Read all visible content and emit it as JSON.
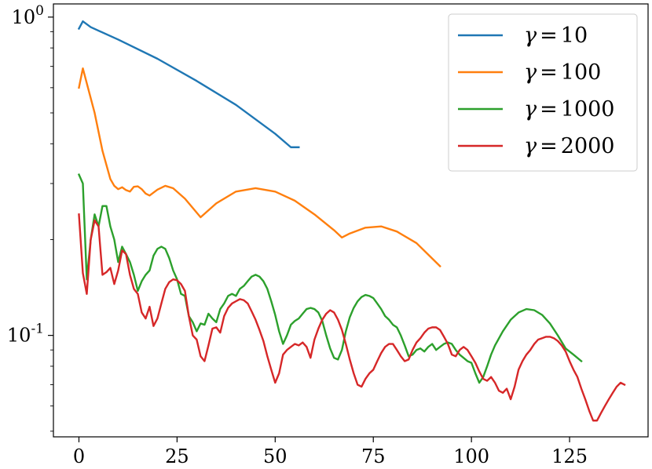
{
  "chart_data": {
    "type": "line",
    "title": "",
    "xlabel": "",
    "ylabel": "",
    "xlim": [
      -6.5,
      145
    ],
    "ylim": [
      0.048,
      1.1
    ],
    "yscale": "log",
    "grid": false,
    "legend_position": "top-right",
    "x_ticks": [
      0,
      25,
      50,
      75,
      100,
      125
    ],
    "x_tick_labels": [
      "0",
      "25",
      "50",
      "75",
      "100",
      "125"
    ],
    "y_ticks": [
      0.1,
      1
    ],
    "y_tick_labels": [
      {
        "base": "10",
        "exp": "-1"
      },
      {
        "base": "10",
        "exp": "0"
      }
    ],
    "series": [
      {
        "name": "10",
        "color": "#1f77b4",
        "x": [
          0,
          1,
          3,
          10,
          20,
          30,
          40,
          50,
          54,
          56
        ],
        "y": [
          0.92,
          0.97,
          0.93,
          0.85,
          0.74,
          0.63,
          0.53,
          0.43,
          0.39,
          0.39
        ]
      },
      {
        "name": "100",
        "color": "#ff7f0e",
        "x": [
          0,
          1,
          4,
          6,
          8,
          9,
          10,
          11,
          12,
          13,
          14,
          15,
          16,
          17,
          18,
          20,
          22,
          24,
          27,
          31,
          35,
          40,
          45,
          50,
          55,
          60,
          65,
          67,
          69,
          73,
          77,
          81,
          86,
          92
        ],
        "y": [
          0.6,
          0.69,
          0.5,
          0.38,
          0.31,
          0.295,
          0.288,
          0.292,
          0.286,
          0.283,
          0.293,
          0.294,
          0.288,
          0.279,
          0.275,
          0.287,
          0.295,
          0.29,
          0.269,
          0.235,
          0.26,
          0.283,
          0.29,
          0.283,
          0.265,
          0.24,
          0.214,
          0.203,
          0.209,
          0.218,
          0.22,
          0.212,
          0.195,
          0.165
        ]
      },
      {
        "name": "1000",
        "color": "#2ca02c",
        "x": [
          0,
          1,
          2,
          3,
          4,
          5,
          6,
          7,
          8,
          9,
          10,
          11,
          12,
          13,
          14,
          15,
          16,
          17,
          18,
          19,
          20,
          21,
          22,
          23,
          24,
          25,
          26,
          27,
          28,
          29,
          30,
          31,
          32,
          33,
          34,
          35,
          36,
          37,
          38,
          39,
          40,
          41,
          42,
          43,
          44,
          45,
          46,
          47,
          48,
          49,
          50,
          51,
          52,
          53,
          54,
          55,
          56,
          57,
          58,
          59,
          60,
          61,
          62,
          63,
          64,
          65,
          66,
          67,
          68,
          69,
          70,
          71,
          72,
          73,
          74,
          75,
          76,
          77,
          78,
          79,
          80,
          81,
          82,
          83,
          84,
          85,
          86,
          87,
          88,
          89,
          90,
          91,
          92,
          93,
          94,
          95,
          96,
          97,
          98,
          99,
          100,
          101,
          102,
          103,
          104,
          105,
          106,
          108,
          110,
          112,
          114,
          116,
          118,
          120,
          122,
          124,
          126,
          128
        ],
        "y": [
          0.32,
          0.3,
          0.15,
          0.2,
          0.24,
          0.22,
          0.255,
          0.255,
          0.22,
          0.2,
          0.17,
          0.19,
          0.18,
          0.17,
          0.155,
          0.138,
          0.148,
          0.155,
          0.16,
          0.178,
          0.187,
          0.19,
          0.187,
          0.175,
          0.16,
          0.15,
          0.135,
          0.133,
          0.115,
          0.11,
          0.103,
          0.109,
          0.108,
          0.117,
          0.113,
          0.11,
          0.121,
          0.126,
          0.133,
          0.135,
          0.133,
          0.14,
          0.143,
          0.148,
          0.153,
          0.155,
          0.153,
          0.148,
          0.14,
          0.128,
          0.116,
          0.103,
          0.094,
          0.1,
          0.108,
          0.111,
          0.113,
          0.117,
          0.121,
          0.122,
          0.121,
          0.118,
          0.111,
          0.1,
          0.091,
          0.085,
          0.084,
          0.09,
          0.103,
          0.114,
          0.122,
          0.128,
          0.132,
          0.134,
          0.133,
          0.131,
          0.126,
          0.121,
          0.115,
          0.112,
          0.108,
          0.106,
          0.1,
          0.093,
          0.086,
          0.087,
          0.09,
          0.091,
          0.089,
          0.092,
          0.094,
          0.09,
          0.092,
          0.094,
          0.095,
          0.094,
          0.09,
          0.087,
          0.085,
          0.083,
          0.082,
          0.076,
          0.071,
          0.074,
          0.08,
          0.087,
          0.093,
          0.103,
          0.112,
          0.118,
          0.121,
          0.12,
          0.116,
          0.109,
          0.1,
          0.091,
          0.087,
          0.083
        ]
      },
      {
        "name": "2000",
        "color": "#d62728",
        "x": [
          0,
          1,
          2,
          3,
          4,
          5,
          6,
          7,
          8,
          9,
          10,
          11,
          12,
          13,
          14,
          15,
          16,
          17,
          18,
          19,
          20,
          21,
          22,
          23,
          24,
          25,
          26,
          27,
          28,
          29,
          30,
          31,
          32,
          33,
          34,
          35,
          36,
          37,
          38,
          39,
          40,
          41,
          42,
          43,
          44,
          45,
          46,
          47,
          48,
          49,
          50,
          51,
          52,
          53,
          54,
          55,
          56,
          57,
          58,
          59,
          60,
          61,
          62,
          63,
          64,
          65,
          66,
          67,
          68,
          69,
          70,
          71,
          72,
          73,
          74,
          75,
          76,
          77,
          78,
          79,
          80,
          81,
          82,
          83,
          84,
          85,
          86,
          87,
          88,
          89,
          90,
          91,
          92,
          93,
          94,
          95,
          96,
          97,
          98,
          99,
          100,
          101,
          102,
          103,
          104,
          105,
          106,
          107,
          108,
          109,
          110,
          111,
          112,
          113,
          114,
          115,
          116,
          117,
          118,
          119,
          120,
          121,
          122,
          123,
          124,
          125,
          126,
          127,
          128,
          129,
          130,
          131,
          132,
          133,
          134,
          135,
          136,
          137,
          138,
          139
        ],
        "y": [
          0.24,
          0.157,
          0.135,
          0.2,
          0.23,
          0.22,
          0.155,
          0.158,
          0.163,
          0.145,
          0.16,
          0.185,
          0.18,
          0.155,
          0.14,
          0.135,
          0.118,
          0.113,
          0.123,
          0.107,
          0.113,
          0.126,
          0.14,
          0.147,
          0.15,
          0.149,
          0.145,
          0.138,
          0.115,
          0.1,
          0.097,
          0.086,
          0.083,
          0.093,
          0.105,
          0.106,
          0.102,
          0.115,
          0.122,
          0.126,
          0.128,
          0.13,
          0.129,
          0.126,
          0.119,
          0.112,
          0.104,
          0.096,
          0.086,
          0.078,
          0.071,
          0.076,
          0.087,
          0.09,
          0.092,
          0.094,
          0.093,
          0.095,
          0.092,
          0.085,
          0.097,
          0.105,
          0.112,
          0.117,
          0.12,
          0.118,
          0.112,
          0.104,
          0.094,
          0.084,
          0.076,
          0.07,
          0.069,
          0.073,
          0.076,
          0.078,
          0.083,
          0.088,
          0.092,
          0.094,
          0.094,
          0.09,
          0.086,
          0.083,
          0.084,
          0.09,
          0.095,
          0.098,
          0.102,
          0.105,
          0.106,
          0.106,
          0.104,
          0.099,
          0.094,
          0.087,
          0.086,
          0.09,
          0.092,
          0.09,
          0.086,
          0.082,
          0.077,
          0.073,
          0.072,
          0.074,
          0.071,
          0.067,
          0.066,
          0.068,
          0.063,
          0.069,
          0.078,
          0.083,
          0.087,
          0.09,
          0.094,
          0.097,
          0.098,
          0.099,
          0.099,
          0.098,
          0.096,
          0.093,
          0.089,
          0.083,
          0.078,
          0.074,
          0.068,
          0.063,
          0.058,
          0.054,
          0.054,
          0.057,
          0.06,
          0.063,
          0.066,
          0.069,
          0.071,
          0.07
        ]
      }
    ]
  }
}
